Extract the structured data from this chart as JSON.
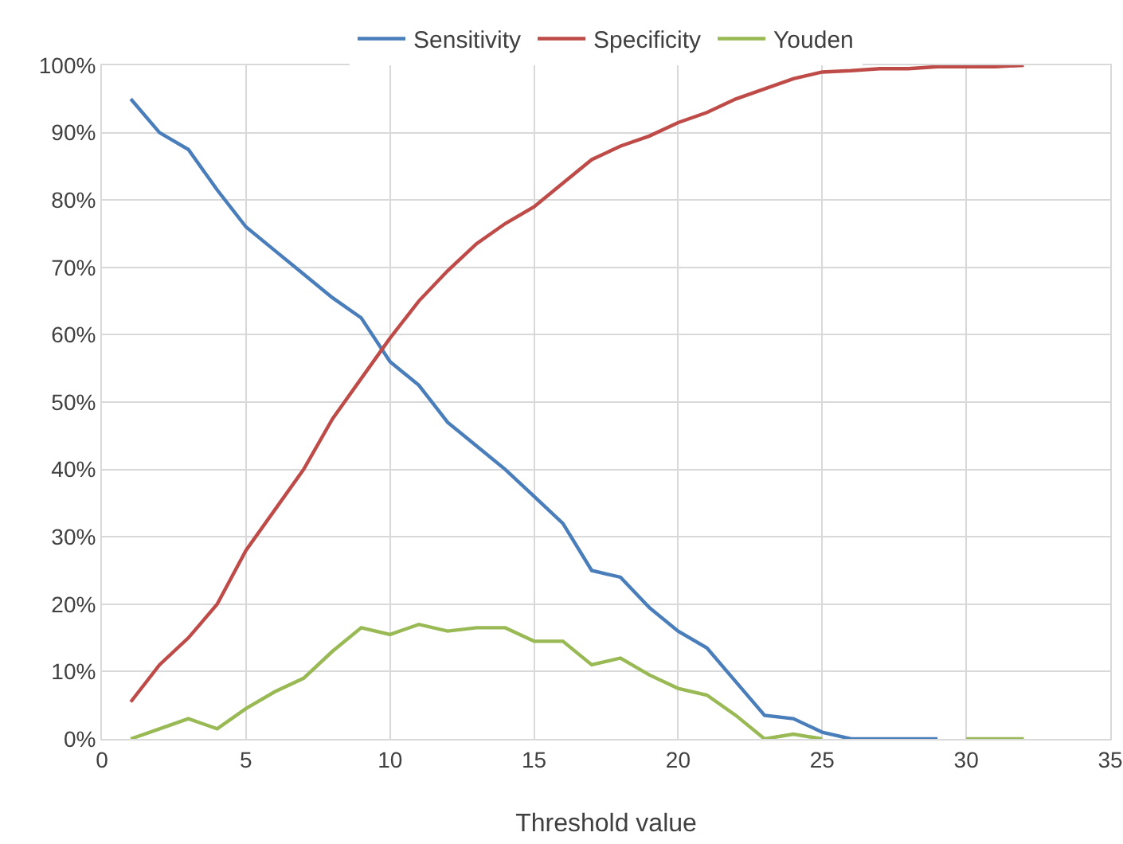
{
  "chart_data": {
    "type": "line",
    "xlabel": "Threshold value",
    "x": [
      1,
      2,
      3,
      4,
      5,
      6,
      7,
      8,
      9,
      10,
      11,
      12,
      13,
      14,
      15,
      16,
      17,
      18,
      19,
      20,
      21,
      22,
      23,
      24,
      25,
      26,
      27,
      28,
      29,
      30,
      31,
      32
    ],
    "series": [
      {
        "name": "Sensitivity",
        "color": "#4a7ebb",
        "values": [
          95,
          90,
          87.5,
          81.5,
          76,
          72.5,
          69,
          65.5,
          62.5,
          56,
          52.5,
          47,
          43.5,
          40,
          36,
          32,
          25,
          24,
          19.5,
          16,
          13.5,
          8.5,
          3.5,
          3,
          1,
          0,
          0,
          0,
          0,
          null,
          null,
          null
        ]
      },
      {
        "name": "Specificity",
        "color": "#be4b48",
        "values": [
          5.5,
          11,
          15,
          20,
          28,
          34,
          40,
          47.5,
          53.5,
          59.5,
          65,
          69.5,
          73.5,
          76.5,
          79,
          82.5,
          86,
          88,
          89.5,
          91.5,
          93,
          95,
          96.5,
          98,
          99,
          99.2,
          99.5,
          99.5,
          99.8,
          99.8,
          99.8,
          100
        ]
      },
      {
        "name": "Youden",
        "color": "#98b954",
        "values": [
          0,
          1.5,
          3,
          1.5,
          4.5,
          7,
          9,
          13,
          16.5,
          15.5,
          17,
          16,
          16.5,
          16.5,
          14.5,
          14.5,
          11,
          12,
          9.5,
          7.5,
          6.5,
          3.5,
          0,
          0.7,
          0,
          null,
          null,
          null,
          null,
          0,
          0,
          0
        ]
      }
    ],
    "xlim": [
      0,
      35
    ],
    "xticks": [
      0,
      5,
      10,
      15,
      20,
      25,
      30,
      35
    ],
    "ylim": [
      0,
      100
    ],
    "yticks": [
      {
        "value": 0,
        "label": "0%"
      },
      {
        "value": 10,
        "label": "10%"
      },
      {
        "value": 20,
        "label": "20%"
      },
      {
        "value": 30,
        "label": "30%"
      },
      {
        "value": 40,
        "label": "40%"
      },
      {
        "value": 50,
        "label": "50%"
      },
      {
        "value": 60,
        "label": "60%"
      },
      {
        "value": 70,
        "label": "70%"
      },
      {
        "value": 80,
        "label": "80%"
      },
      {
        "value": 90,
        "label": "90%"
      },
      {
        "value": 100,
        "label": "100%"
      }
    ],
    "grid": true,
    "legend": "top",
    "marker": "none",
    "line_style": "solid"
  }
}
